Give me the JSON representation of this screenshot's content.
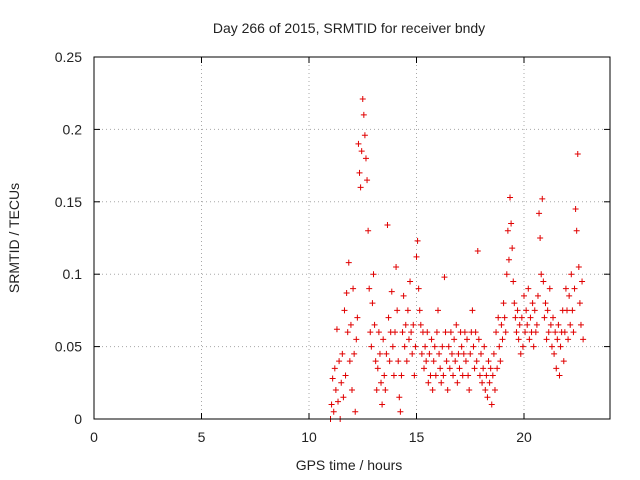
{
  "chart_data": {
    "type": "scatter",
    "title": "Day 266 of 2015, SRMTID for receiver bndy",
    "xlabel": "GPS time / hours",
    "ylabel": "SRMTID / TECUs",
    "xlim": [
      0,
      24
    ],
    "ylim": [
      0,
      0.25
    ],
    "x_ticks": [
      0,
      5,
      10,
      15,
      20
    ],
    "x_tick_labels": [
      "0",
      "5",
      "10",
      "15",
      "20"
    ],
    "y_ticks": [
      0,
      0.05,
      0.1,
      0.15,
      0.2,
      0.25
    ],
    "y_tick_labels": [
      "0",
      "0.05",
      "0.1",
      "0.15",
      "0.2",
      "0.25"
    ],
    "grid": true,
    "marker": "+",
    "series": [
      {
        "name": "SRMTID",
        "color": "#e00000",
        "points": [
          [
            11.0,
            0.0
          ],
          [
            11.05,
            0.01
          ],
          [
            11.1,
            0.028
          ],
          [
            11.15,
            0.005
          ],
          [
            11.2,
            0.035
          ],
          [
            11.25,
            0.02
          ],
          [
            11.3,
            0.062
          ],
          [
            11.35,
            0.012
          ],
          [
            11.4,
            0.04
          ],
          [
            11.45,
            0.0
          ],
          [
            11.5,
            0.025
          ],
          [
            11.55,
            0.045
          ],
          [
            11.6,
            0.015
          ],
          [
            11.65,
            0.075
          ],
          [
            11.7,
            0.03
          ],
          [
            11.75,
            0.087
          ],
          [
            11.8,
            0.06
          ],
          [
            11.85,
            0.108
          ],
          [
            11.9,
            0.04
          ],
          [
            11.95,
            0.065
          ],
          [
            12.0,
            0.02
          ],
          [
            12.05,
            0.09
          ],
          [
            12.1,
            0.045
          ],
          [
            12.15,
            0.005
          ],
          [
            12.2,
            0.055
          ],
          [
            12.25,
            0.07
          ],
          [
            12.3,
            0.19
          ],
          [
            12.35,
            0.17
          ],
          [
            12.4,
            0.16
          ],
          [
            12.45,
            0.185
          ],
          [
            12.5,
            0.221
          ],
          [
            12.55,
            0.21
          ],
          [
            12.6,
            0.196
          ],
          [
            12.65,
            0.18
          ],
          [
            12.7,
            0.165
          ],
          [
            12.75,
            0.13
          ],
          [
            12.8,
            0.09
          ],
          [
            12.85,
            0.06
          ],
          [
            12.9,
            0.05
          ],
          [
            12.95,
            0.08
          ],
          [
            13.0,
            0.1
          ],
          [
            13.05,
            0.065
          ],
          [
            13.1,
            0.04
          ],
          [
            13.15,
            0.02
          ],
          [
            13.2,
            0.035
          ],
          [
            13.25,
            0.06
          ],
          [
            13.3,
            0.045
          ],
          [
            13.35,
            0.025
          ],
          [
            13.4,
            0.01
          ],
          [
            13.45,
            0.055
          ],
          [
            13.5,
            0.03
          ],
          [
            13.55,
            0.02
          ],
          [
            13.6,
            0.045
          ],
          [
            13.65,
            0.134
          ],
          [
            13.7,
            0.07
          ],
          [
            13.75,
            0.04
          ],
          [
            13.8,
            0.06
          ],
          [
            13.85,
            0.088
          ],
          [
            13.9,
            0.05
          ],
          [
            13.95,
            0.03
          ],
          [
            14.0,
            0.06
          ],
          [
            14.05,
            0.105
          ],
          [
            14.1,
            0.075
          ],
          [
            14.15,
            0.04
          ],
          [
            14.2,
            0.015
          ],
          [
            14.25,
            0.005
          ],
          [
            14.3,
            0.03
          ],
          [
            14.35,
            0.06
          ],
          [
            14.4,
            0.085
          ],
          [
            14.45,
            0.05
          ],
          [
            14.5,
            0.065
          ],
          [
            14.55,
            0.04
          ],
          [
            14.6,
            0.075
          ],
          [
            14.65,
            0.055
          ],
          [
            14.7,
            0.095
          ],
          [
            14.75,
            0.06
          ],
          [
            14.8,
            0.045
          ],
          [
            14.85,
            0.065
          ],
          [
            14.9,
            0.03
          ],
          [
            14.95,
            0.05
          ],
          [
            15.0,
            0.112
          ],
          [
            15.05,
            0.123
          ],
          [
            15.1,
            0.09
          ],
          [
            15.15,
            0.075
          ],
          [
            15.2,
            0.065
          ],
          [
            15.25,
            0.045
          ],
          [
            15.3,
            0.06
          ],
          [
            15.35,
            0.035
          ],
          [
            15.4,
            0.05
          ],
          [
            15.45,
            0.04
          ],
          [
            15.5,
            0.06
          ],
          [
            15.55,
            0.025
          ],
          [
            15.6,
            0.045
          ],
          [
            15.65,
            0.03
          ],
          [
            15.7,
            0.055
          ],
          [
            15.75,
            0.02
          ],
          [
            15.8,
            0.04
          ],
          [
            15.85,
            0.05
          ],
          [
            15.9,
            0.03
          ],
          [
            15.95,
            0.06
          ],
          [
            16.0,
            0.075
          ],
          [
            16.05,
            0.045
          ],
          [
            16.1,
            0.035
          ],
          [
            16.15,
            0.025
          ],
          [
            16.2,
            0.05
          ],
          [
            16.25,
            0.03
          ],
          [
            16.3,
            0.098
          ],
          [
            16.35,
            0.06
          ],
          [
            16.4,
            0.04
          ],
          [
            16.45,
            0.02
          ],
          [
            16.5,
            0.05
          ],
          [
            16.55,
            0.035
          ],
          [
            16.6,
            0.06
          ],
          [
            16.65,
            0.045
          ],
          [
            16.7,
            0.03
          ],
          [
            16.75,
            0.055
          ],
          [
            16.8,
            0.04
          ],
          [
            16.85,
            0.065
          ],
          [
            16.9,
            0.025
          ],
          [
            16.95,
            0.045
          ],
          [
            17.0,
            0.035
          ],
          [
            17.05,
            0.06
          ],
          [
            17.1,
            0.05
          ],
          [
            17.15,
            0.03
          ],
          [
            17.2,
            0.045
          ],
          [
            17.25,
            0.06
          ],
          [
            17.3,
            0.04
          ],
          [
            17.35,
            0.055
          ],
          [
            17.4,
            0.03
          ],
          [
            17.45,
            0.02
          ],
          [
            17.5,
            0.045
          ],
          [
            17.55,
            0.06
          ],
          [
            17.6,
            0.075
          ],
          [
            17.65,
            0.05
          ],
          [
            17.7,
            0.035
          ],
          [
            17.75,
            0.06
          ],
          [
            17.8,
            0.04
          ],
          [
            17.85,
            0.116
          ],
          [
            17.9,
            0.055
          ],
          [
            17.95,
            0.03
          ],
          [
            18.0,
            0.045
          ],
          [
            18.05,
            0.025
          ],
          [
            18.1,
            0.035
          ],
          [
            18.15,
            0.05
          ],
          [
            18.2,
            0.02
          ],
          [
            18.25,
            0.03
          ],
          [
            18.3,
            0.015
          ],
          [
            18.35,
            0.04
          ],
          [
            18.4,
            0.025
          ],
          [
            18.45,
            0.035
          ],
          [
            18.5,
            0.01
          ],
          [
            18.55,
            0.03
          ],
          [
            18.6,
            0.045
          ],
          [
            18.65,
            0.02
          ],
          [
            18.7,
            0.06
          ],
          [
            18.75,
            0.035
          ],
          [
            18.8,
            0.07
          ],
          [
            18.85,
            0.05
          ],
          [
            18.9,
            0.04
          ],
          [
            18.95,
            0.065
          ],
          [
            19.0,
            0.055
          ],
          [
            19.05,
            0.08
          ],
          [
            19.1,
            0.07
          ],
          [
            19.15,
            0.06
          ],
          [
            19.2,
            0.1
          ],
          [
            19.25,
            0.13
          ],
          [
            19.3,
            0.11
          ],
          [
            19.35,
            0.153
          ],
          [
            19.4,
            0.135
          ],
          [
            19.45,
            0.118
          ],
          [
            19.5,
            0.095
          ],
          [
            19.55,
            0.08
          ],
          [
            19.6,
            0.07
          ],
          [
            19.65,
            0.06
          ],
          [
            19.7,
            0.075
          ],
          [
            19.75,
            0.055
          ],
          [
            19.8,
            0.065
          ],
          [
            19.85,
            0.045
          ],
          [
            19.9,
            0.07
          ],
          [
            19.95,
            0.05
          ],
          [
            20.0,
            0.085
          ],
          [
            20.05,
            0.06
          ],
          [
            20.1,
            0.075
          ],
          [
            20.15,
            0.065
          ],
          [
            20.2,
            0.09
          ],
          [
            20.25,
            0.055
          ],
          [
            20.3,
            0.07
          ],
          [
            20.35,
            0.06
          ],
          [
            20.4,
            0.08
          ],
          [
            20.45,
            0.05
          ],
          [
            20.5,
            0.075
          ],
          [
            20.55,
            0.06
          ],
          [
            20.6,
            0.065
          ],
          [
            20.65,
            0.085
          ],
          [
            20.7,
            0.142
          ],
          [
            20.75,
            0.125
          ],
          [
            20.8,
            0.1
          ],
          [
            20.85,
            0.152
          ],
          [
            20.9,
            0.095
          ],
          [
            20.95,
            0.07
          ],
          [
            21.0,
            0.08
          ],
          [
            21.05,
            0.055
          ],
          [
            21.1,
            0.075
          ],
          [
            21.15,
            0.06
          ],
          [
            21.2,
            0.09
          ],
          [
            21.25,
            0.065
          ],
          [
            21.3,
            0.05
          ],
          [
            21.35,
            0.07
          ],
          [
            21.4,
            0.045
          ],
          [
            21.45,
            0.06
          ],
          [
            21.5,
            0.035
          ],
          [
            21.55,
            0.055
          ],
          [
            21.6,
            0.065
          ],
          [
            21.65,
            0.03
          ],
          [
            21.7,
            0.05
          ],
          [
            21.75,
            0.06
          ],
          [
            21.8,
            0.075
          ],
          [
            21.85,
            0.04
          ],
          [
            21.9,
            0.06
          ],
          [
            21.95,
            0.09
          ],
          [
            22.0,
            0.075
          ],
          [
            22.05,
            0.055
          ],
          [
            22.1,
            0.085
          ],
          [
            22.15,
            0.065
          ],
          [
            22.2,
            0.1
          ],
          [
            22.25,
            0.075
          ],
          [
            22.3,
            0.06
          ],
          [
            22.35,
            0.09
          ],
          [
            22.4,
            0.145
          ],
          [
            22.45,
            0.13
          ],
          [
            22.5,
            0.183
          ],
          [
            22.55,
            0.105
          ],
          [
            22.6,
            0.08
          ],
          [
            22.65,
            0.065
          ],
          [
            22.7,
            0.095
          ],
          [
            22.75,
            0.055
          ]
        ]
      }
    ]
  }
}
